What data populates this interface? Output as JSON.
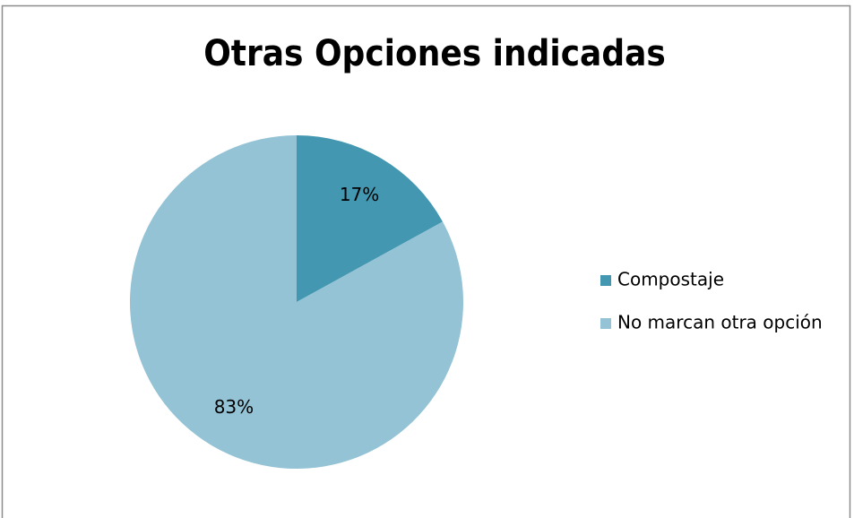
{
  "chart_data": {
    "type": "pie",
    "title": "Otras Opciones indicadas",
    "categories": [
      "Compostaje",
      "No marcan otra opción"
    ],
    "values": [
      17,
      83
    ],
    "value_labels": [
      "17%",
      "83%"
    ],
    "colors": [
      "#4397b0",
      "#93c3d5"
    ],
    "legend": "right"
  }
}
